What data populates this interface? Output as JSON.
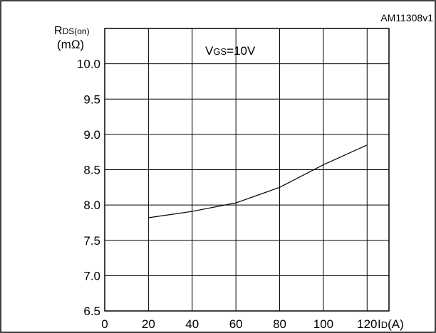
{
  "chart_data": {
    "type": "line",
    "figure_id": "AM11308v1",
    "annotation": {
      "prefix": "V",
      "sub": "GS",
      "suffix": "=10V"
    },
    "y_axis": {
      "main": "R",
      "sub": "DS(on)",
      "unit": "(mΩ)"
    },
    "x_axis": {
      "main": "I",
      "sub": "D",
      "unit": "(A)"
    },
    "xlim": [
      0,
      130
    ],
    "ylim": [
      6.5,
      10.5
    ],
    "x_ticks": [
      0,
      20,
      40,
      60,
      80,
      100,
      120
    ],
    "y_ticks": [
      6.5,
      7.0,
      7.5,
      8.0,
      8.5,
      9.0,
      9.5,
      10.0
    ],
    "x_tick_labels": [
      "0",
      "20",
      "40",
      "60",
      "80",
      "100",
      "120"
    ],
    "y_tick_labels": [
      "6.5",
      "7.0",
      "7.5",
      "8.0",
      "8.5",
      "9.0",
      "9.5",
      "10.0"
    ],
    "grid": true,
    "series": [
      {
        "x": [
          20,
          40,
          60,
          80,
          100,
          120
        ],
        "values": [
          7.82,
          7.91,
          8.03,
          8.25,
          8.57,
          8.85
        ]
      }
    ]
  }
}
